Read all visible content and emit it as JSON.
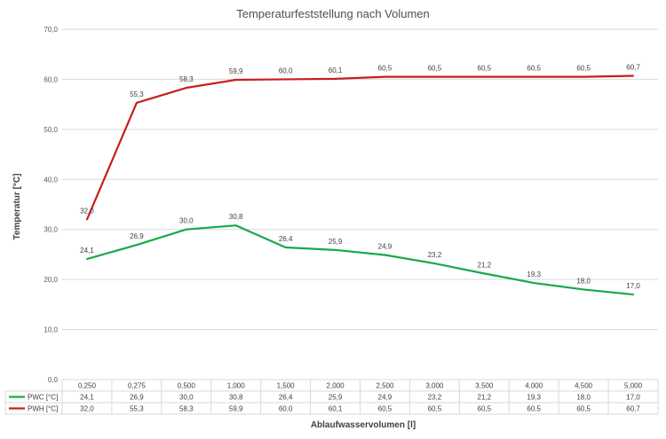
{
  "colors": {
    "pwc": "#1aa84a",
    "pwh": "#c81e1e",
    "grid": "#d9d9d9",
    "table": "#d9d9d9"
  },
  "chart_data": {
    "type": "line",
    "title": "Temperaturfeststellung nach Volumen",
    "xlabel": "Ablaufwasservolumen [l]",
    "ylabel": "Temperatur [°C]",
    "ylim": [
      0,
      70
    ],
    "yticks": [
      "0,0",
      "10,0",
      "20,0",
      "30,0",
      "40,0",
      "50,0",
      "60,0",
      "70,0"
    ],
    "grid": true,
    "legend": "data-table",
    "categories": [
      "0,250",
      "0,275",
      "0,500",
      "1,000",
      "1,500",
      "2,000",
      "2,500",
      "3,000",
      "3,500",
      "4,000",
      "4,500",
      "5,000"
    ],
    "series": [
      {
        "name": "PWC [°C]",
        "color": "#1aa84a",
        "values": [
          24.1,
          26.9,
          30.0,
          30.8,
          26.4,
          25.9,
          24.9,
          23.2,
          21.2,
          19.3,
          18.0,
          17.0
        ],
        "labels": [
          "24,1",
          "26,9",
          "30,0",
          "30,8",
          "26,4",
          "25,9",
          "24,9",
          "23,2",
          "21,2",
          "19,3",
          "18,0",
          "17,0"
        ]
      },
      {
        "name": "PWH [°C]",
        "color": "#c81e1e",
        "values": [
          32.0,
          55.3,
          58.3,
          59.9,
          60.0,
          60.1,
          60.5,
          60.5,
          60.5,
          60.5,
          60.5,
          60.7
        ],
        "labels": [
          "32,0",
          "55,3",
          "58,3",
          "59,9",
          "60,0",
          "60,1",
          "60,5",
          "60,5",
          "60,5",
          "60,5",
          "60,5",
          "60,7"
        ]
      }
    ]
  }
}
